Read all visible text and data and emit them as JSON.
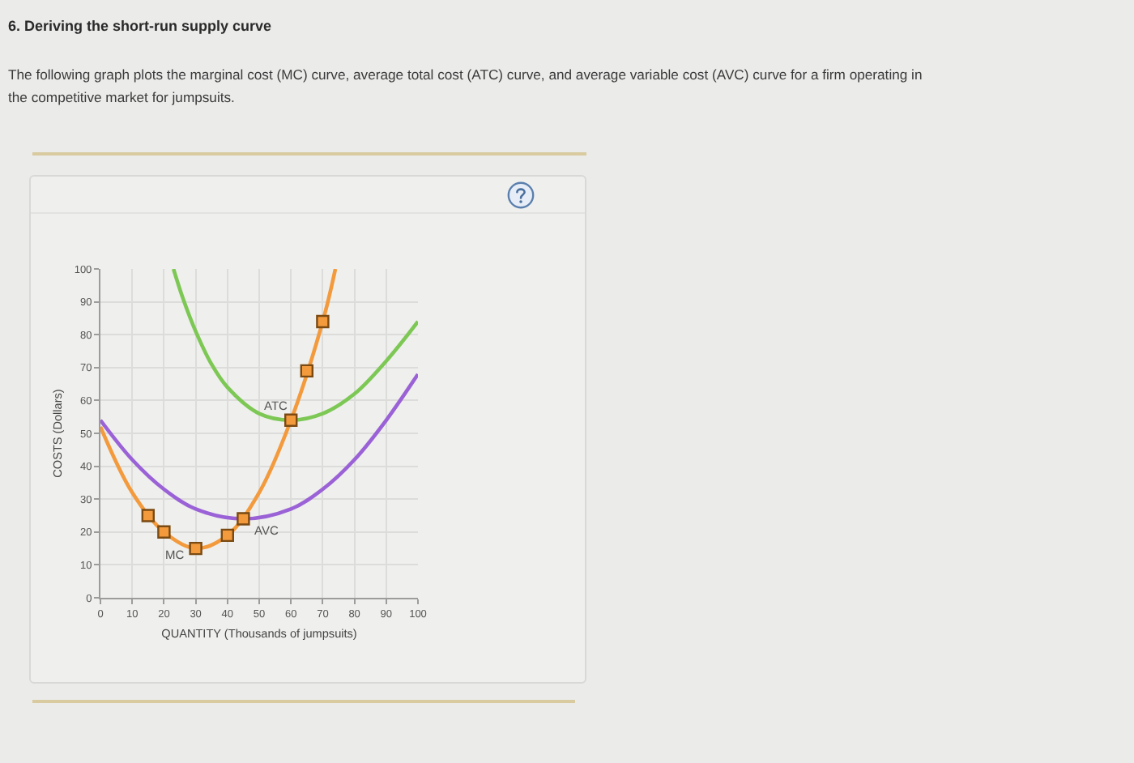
{
  "chart_data": {
    "type": "line",
    "title": "6. Deriving the short-run supply curve",
    "subtitle": "The following graph plots the marginal cost (MC) curve, average total cost (ATC) curve, and average variable cost (AVC) curve for a firm operating in the competitive market for jumpsuits.",
    "xlabel": "QUANTITY (Thousands of jumpsuits)",
    "ylabel": "COSTS (Dollars)",
    "xlim": [
      0,
      100
    ],
    "xticks": [
      0,
      10,
      20,
      30,
      40,
      50,
      60,
      70,
      80,
      90,
      100
    ],
    "ylim": [
      0,
      100
    ],
    "yticks": [
      0,
      10,
      20,
      30,
      40,
      50,
      60,
      70,
      80,
      90,
      100
    ],
    "grid": true,
    "series": [
      {
        "name": "MC",
        "color": "#f39a3d",
        "x": [
          0,
          10,
          20,
          30,
          40,
          50,
          60,
          70,
          74
        ],
        "values": [
          52,
          32,
          20,
          15,
          19,
          32,
          54,
          84,
          100
        ]
      },
      {
        "name": "ATC",
        "color": "#7dc855",
        "x": [
          23,
          26,
          30,
          35,
          40,
          50,
          60,
          70,
          80,
          90,
          100
        ],
        "values": [
          100,
          91,
          81,
          71,
          64,
          56,
          54,
          56,
          62,
          72,
          84
        ]
      },
      {
        "name": "AVC",
        "color": "#9a62d6",
        "x": [
          0,
          10,
          20,
          30,
          45,
          60,
          70,
          80,
          90,
          100
        ],
        "values": [
          54,
          42,
          33,
          27,
          24,
          27,
          33,
          42,
          54,
          68
        ]
      },
      {
        "type": "scatter",
        "color": "#f39a3d",
        "marker": "square",
        "x": [
          15,
          20,
          30,
          40,
          45,
          60,
          65,
          70
        ],
        "values": [
          25,
          20,
          15,
          19,
          24,
          54,
          69,
          84
        ]
      }
    ]
  }
}
